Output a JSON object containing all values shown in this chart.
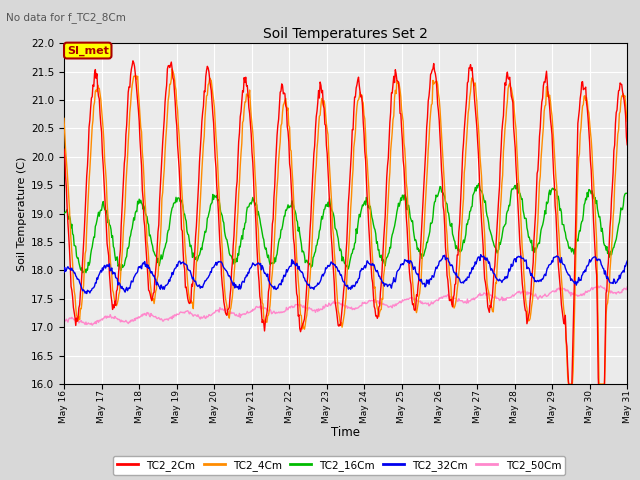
{
  "title": "Soil Temperatures Set 2",
  "subtitle": "No data for f_TC2_8Cm",
  "xlabel": "Time",
  "ylabel": "Soil Temperature (C)",
  "ylim": [
    16.0,
    22.0
  ],
  "yticks": [
    16.0,
    16.5,
    17.0,
    17.5,
    18.0,
    18.5,
    19.0,
    19.5,
    20.0,
    20.5,
    21.0,
    21.5,
    22.0
  ],
  "legend_label": "SI_met",
  "legend_box_color": "#FFFF00",
  "legend_box_border": "#AA0000",
  "series_colors": [
    "#FF0000",
    "#FF8C00",
    "#00BB00",
    "#0000EE",
    "#FF88CC"
  ],
  "series_names": [
    "TC2_2Cm",
    "TC2_4Cm",
    "TC2_16Cm",
    "TC2_32Cm",
    "TC2_50Cm"
  ],
  "xtick_labels": [
    "May 16",
    "May 17",
    "May 18",
    "May 19",
    "May 20",
    "May 21",
    "May 22",
    "May 23",
    "May 24",
    "May 25",
    "May 26",
    "May 27",
    "May 28",
    "May 29",
    "May 30",
    "May 31"
  ],
  "background_color": "#D8D8D8",
  "plot_bg_color": "#EBEBEB",
  "grid_color": "#FFFFFF"
}
